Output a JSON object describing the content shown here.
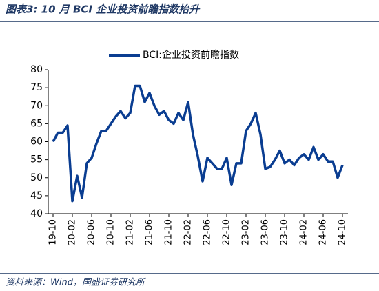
{
  "chart_data": {
    "type": "line",
    "title": "图表3:  10 月 BCI 企业投资前瞻指数抬升",
    "source": "资料来源：Wind，国盛证券研究所",
    "categories": [
      "19-10",
      null,
      null,
      null,
      "20-02",
      null,
      null,
      null,
      "20-06",
      null,
      null,
      null,
      "20-10",
      null,
      null,
      null,
      "21-02",
      null,
      null,
      null,
      "21-06",
      null,
      null,
      null,
      "21-10",
      null,
      null,
      null,
      "22-02",
      null,
      null,
      null,
      "22-06",
      null,
      null,
      null,
      "22-10",
      null,
      null,
      null,
      "23-02",
      null,
      null,
      null,
      "23-06",
      null,
      null,
      null,
      "23-10",
      null,
      null,
      null,
      "24-02",
      null,
      null,
      null,
      "24-06",
      null,
      null,
      null,
      "24-10"
    ],
    "series": [
      {
        "name": "BCI:企业投资前瞻指数",
        "color": "#0a3d91",
        "values": [
          60,
          62.5,
          62.5,
          64.5,
          43.5,
          50.5,
          44.5,
          54,
          55.5,
          59.5,
          63,
          63,
          65,
          67,
          68.5,
          66.5,
          68,
          75.5,
          75.5,
          71,
          73.5,
          70,
          67.5,
          68.5,
          66,
          65,
          68,
          66,
          71,
          62,
          56,
          49,
          55.5,
          54,
          52.5,
          52.5,
          55.5,
          48,
          54,
          54,
          63,
          65,
          68,
          62,
          52.5,
          53,
          55,
          57.5,
          54,
          55,
          53.5,
          55.5,
          56.5,
          55,
          58.5,
          55,
          56.5,
          54.5,
          54.5,
          50,
          53.5
        ]
      }
    ],
    "ylim": [
      40,
      80
    ],
    "yticks": [
      40,
      45,
      50,
      55,
      60,
      65,
      70,
      75,
      80
    ],
    "legend": "top"
  }
}
